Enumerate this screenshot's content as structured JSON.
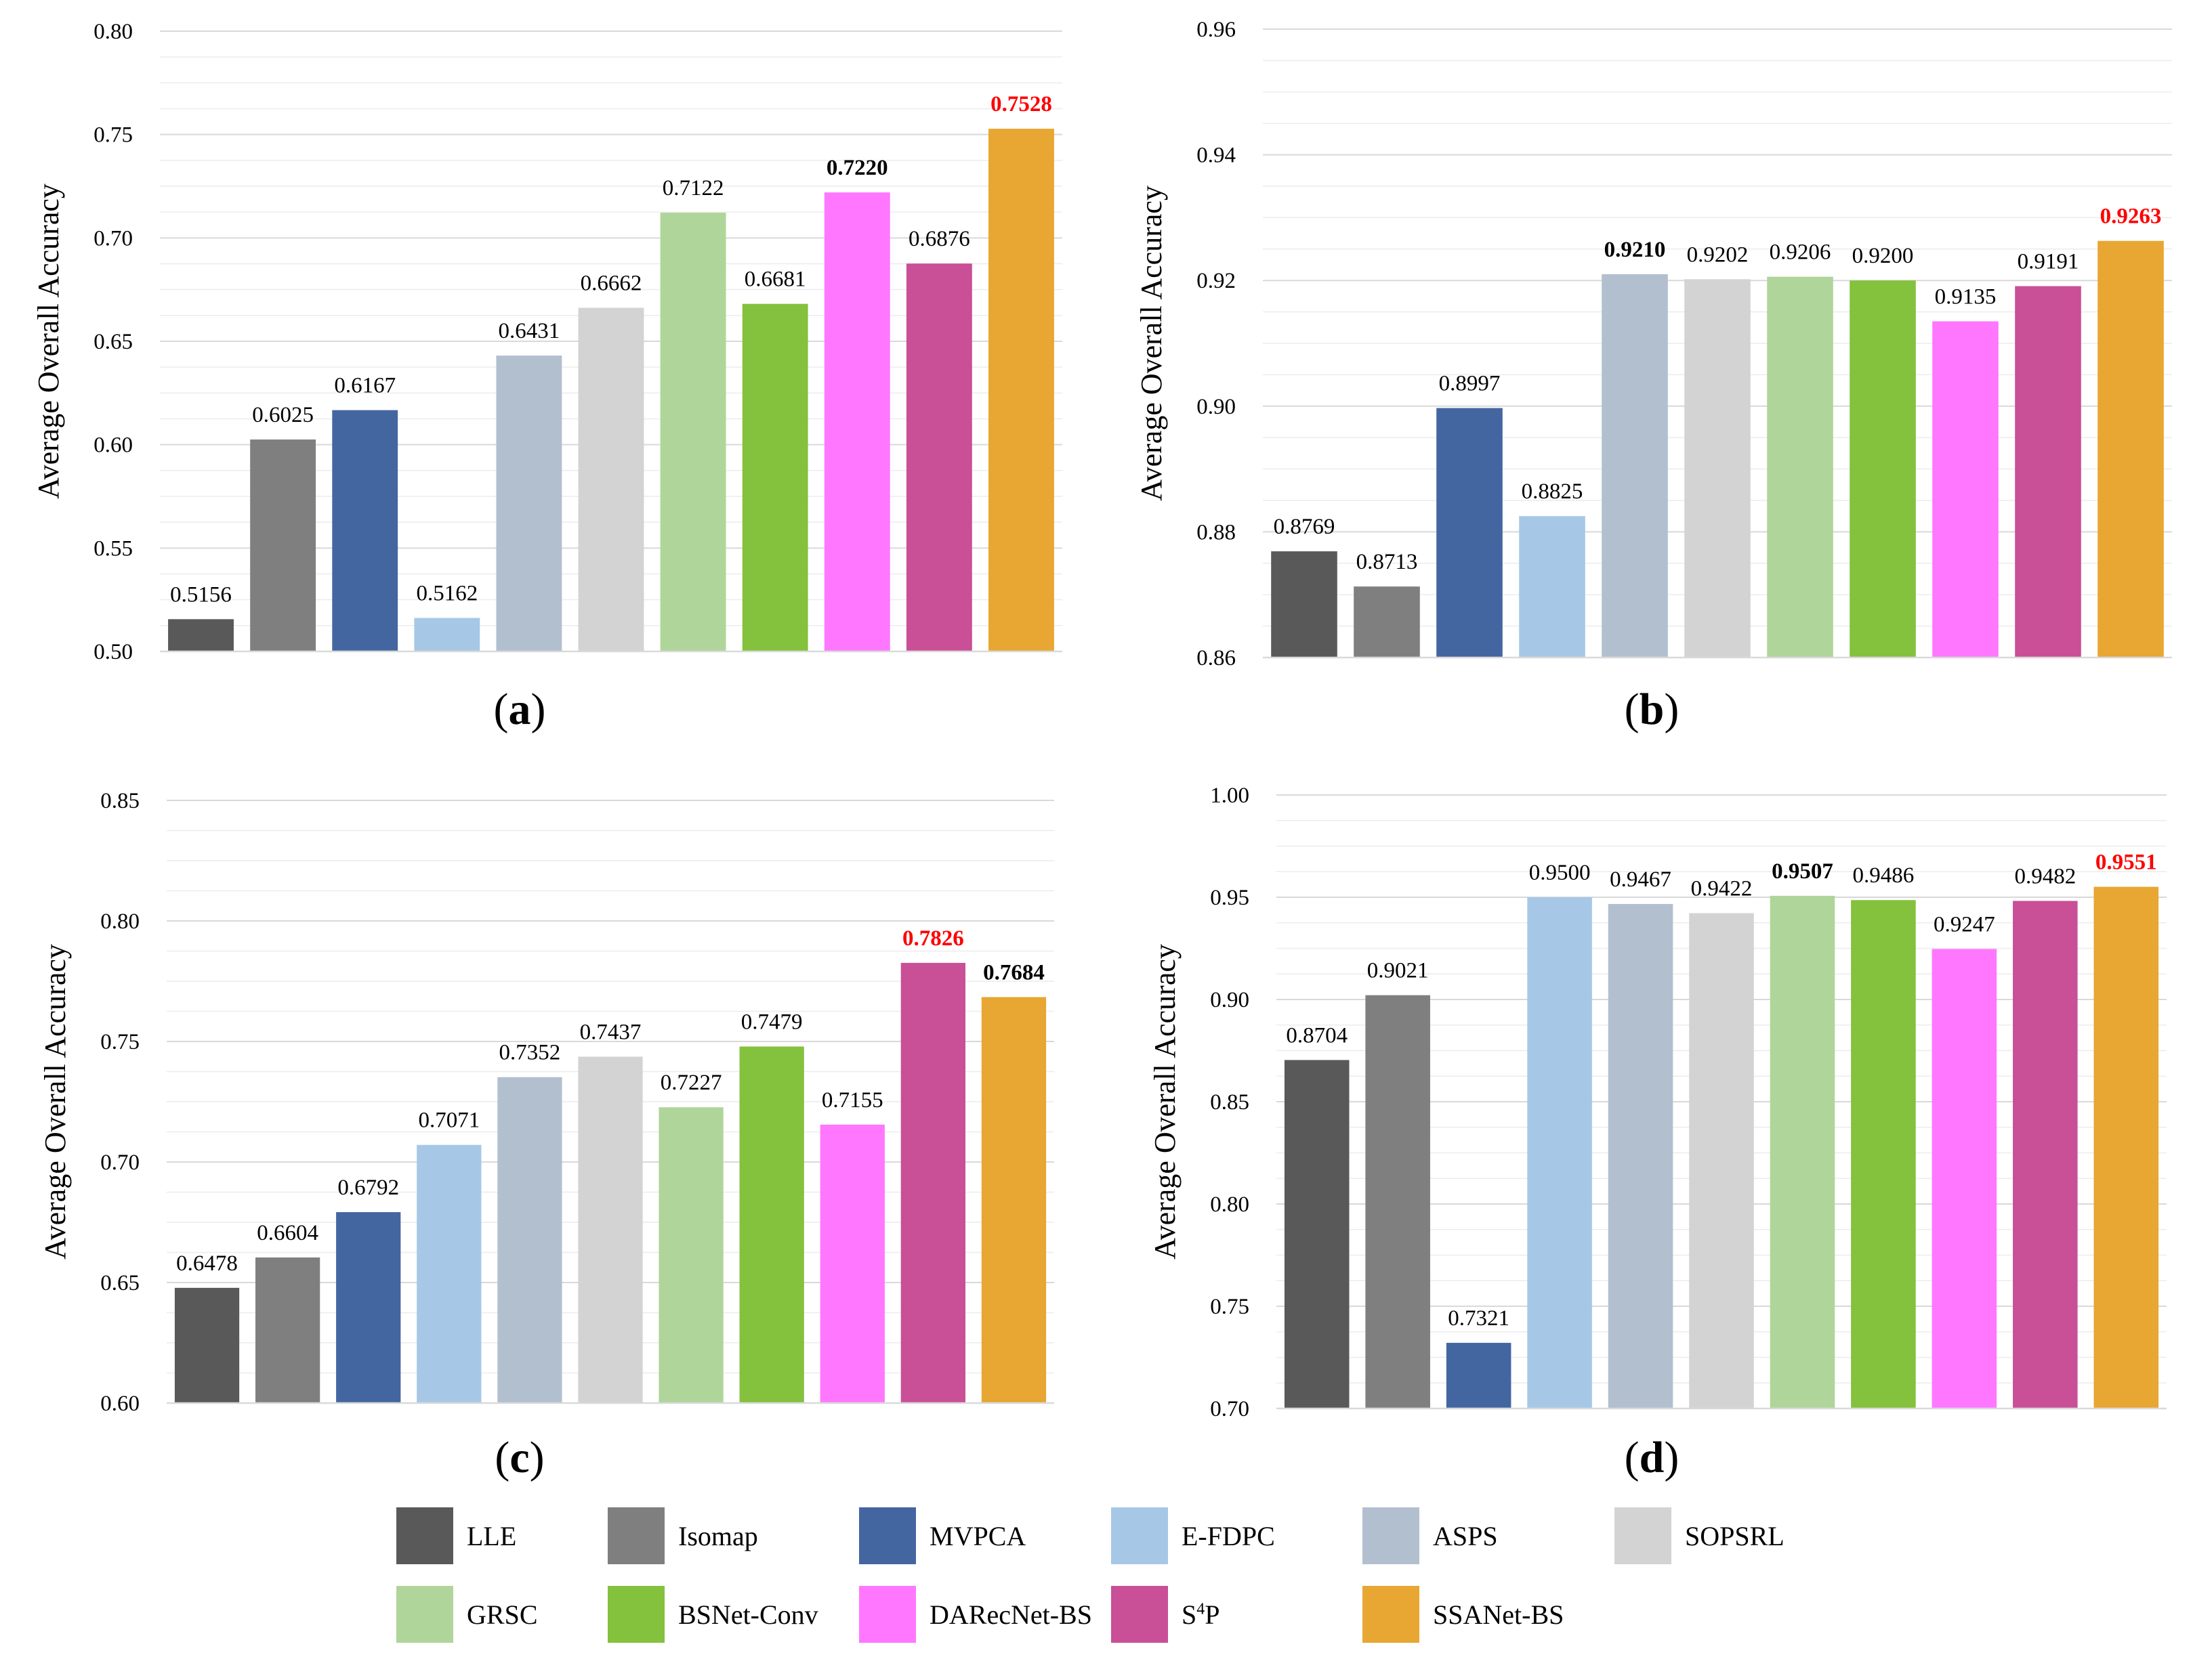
{
  "colors": [
    "#595959",
    "#7f7f7f",
    "#4466a0",
    "#a6c8e6",
    "#b2bfcf",
    "#d4d3d4",
    "#b0d59a",
    "#84c13d",
    "#ff77ff",
    "#c94f96",
    "#e8a632"
  ],
  "legend": {
    "items": [
      {
        "name": "LLE"
      },
      {
        "name": "Isomap"
      },
      {
        "name": "MVPCA"
      },
      {
        "name": "E-FDPC"
      },
      {
        "name": "ASPS"
      },
      {
        "name": "SOPSRL"
      },
      {
        "name": "GRSC"
      },
      {
        "name": "BSNet-Conv"
      },
      {
        "name": "DARecNet-BS"
      },
      {
        "name": "S",
        "sup": "4",
        "rest": "P"
      },
      {
        "name": "SSANet-BS"
      }
    ]
  },
  "chart_data": [
    {
      "panel": "a",
      "type": "bar",
      "ylabel": "Average Overall Accuracy",
      "ylim": [
        0.5,
        0.8
      ],
      "yticks": [
        "0.50",
        "0.55",
        "0.60",
        "0.65",
        "0.70",
        "0.75",
        "0.80"
      ],
      "categories": [
        "LLE",
        "Isomap",
        "MVPCA",
        "E-FDPC",
        "ASPS",
        "SOPSRL",
        "GRSC",
        "BSNet-Conv",
        "DARecNet-BS",
        "S4P",
        "SSANet-BS"
      ],
      "values": [
        0.5156,
        0.6025,
        0.6167,
        0.5162,
        0.6431,
        0.6662,
        0.7122,
        0.6681,
        0.722,
        0.6876,
        0.7528
      ],
      "labels": [
        "0.5156",
        "0.6025",
        "0.6167",
        "0.5162",
        "0.6431",
        "0.6662",
        "0.7122",
        "0.6681",
        "0.7220",
        "0.6876",
        "0.7528"
      ],
      "label_styles": [
        "",
        "",
        "",
        "",
        "",
        "",
        "",
        "",
        "bold",
        "",
        "best"
      ]
    },
    {
      "panel": "b",
      "type": "bar",
      "ylabel": "Average Overall Accuracy",
      "ylim": [
        0.86,
        0.96
      ],
      "yticks": [
        "0.86",
        "0.88",
        "0.90",
        "0.92",
        "0.94",
        "0.96"
      ],
      "categories": [
        "LLE",
        "Isomap",
        "MVPCA",
        "E-FDPC",
        "ASPS",
        "SOPSRL",
        "GRSC",
        "BSNet-Conv",
        "DARecNet-BS",
        "S4P",
        "SSANet-BS"
      ],
      "values": [
        0.8769,
        0.8713,
        0.8997,
        0.8825,
        0.921,
        0.9202,
        0.9206,
        0.92,
        0.9135,
        0.9191,
        0.9263
      ],
      "labels": [
        "0.8769",
        "0.8713",
        "0.8997",
        "0.8825",
        "0.9210",
        "0.9202",
        "0.9206",
        "0.9200",
        "0.9135",
        "0.9191",
        "0.9263"
      ],
      "label_styles": [
        "",
        "",
        "",
        "",
        "bold",
        "",
        "",
        "",
        "",
        "",
        "best"
      ]
    },
    {
      "panel": "c",
      "type": "bar",
      "ylabel": "Average Overall Accuracy",
      "ylim": [
        0.6,
        0.85
      ],
      "yticks": [
        "0.60",
        "0.65",
        "0.70",
        "0.75",
        "0.80",
        "0.85"
      ],
      "categories": [
        "LLE",
        "Isomap",
        "MVPCA",
        "E-FDPC",
        "ASPS",
        "SOPSRL",
        "GRSC",
        "BSNet-Conv",
        "DARecNet-BS",
        "S4P",
        "SSANet-BS"
      ],
      "values": [
        0.6478,
        0.6604,
        0.6792,
        0.7071,
        0.7352,
        0.7437,
        0.7227,
        0.7479,
        0.7155,
        0.7826,
        0.7684
      ],
      "labels": [
        "0.6478",
        "0.6604",
        "0.6792",
        "0.7071",
        "0.7352",
        "0.7437",
        "0.7227",
        "0.7479",
        "0.7155",
        "0.7826",
        "0.7684"
      ],
      "label_styles": [
        "",
        "",
        "",
        "",
        "",
        "",
        "",
        "",
        "",
        "best",
        "bold"
      ]
    },
    {
      "panel": "d",
      "type": "bar",
      "ylabel": "Average Overall Accuracy",
      "ylim": [
        0.7,
        1.0
      ],
      "yticks": [
        "0.70",
        "0.75",
        "0.80",
        "0.85",
        "0.90",
        "0.95",
        "1.00"
      ],
      "categories": [
        "LLE",
        "Isomap",
        "MVPCA",
        "E-FDPC",
        "ASPS",
        "SOPSRL",
        "GRSC",
        "BSNet-Conv",
        "DARecNet-BS",
        "S4P",
        "SSANet-BS"
      ],
      "values": [
        0.8704,
        0.9021,
        0.7321,
        0.95,
        0.9467,
        0.9422,
        0.9507,
        0.9486,
        0.9247,
        0.9482,
        0.9551
      ],
      "labels": [
        "0.8704",
        "0.9021",
        "0.7321",
        "0.9500",
        "0.9467",
        "0.9422",
        "0.9507",
        "0.9486",
        "0.9247",
        "0.9482",
        "0.9551"
      ],
      "label_styles": [
        "",
        "",
        "",
        "",
        "",
        "",
        "bold",
        "",
        "",
        "",
        "best"
      ]
    }
  ],
  "panel_labels": [
    "a",
    "b",
    "c",
    "d"
  ]
}
